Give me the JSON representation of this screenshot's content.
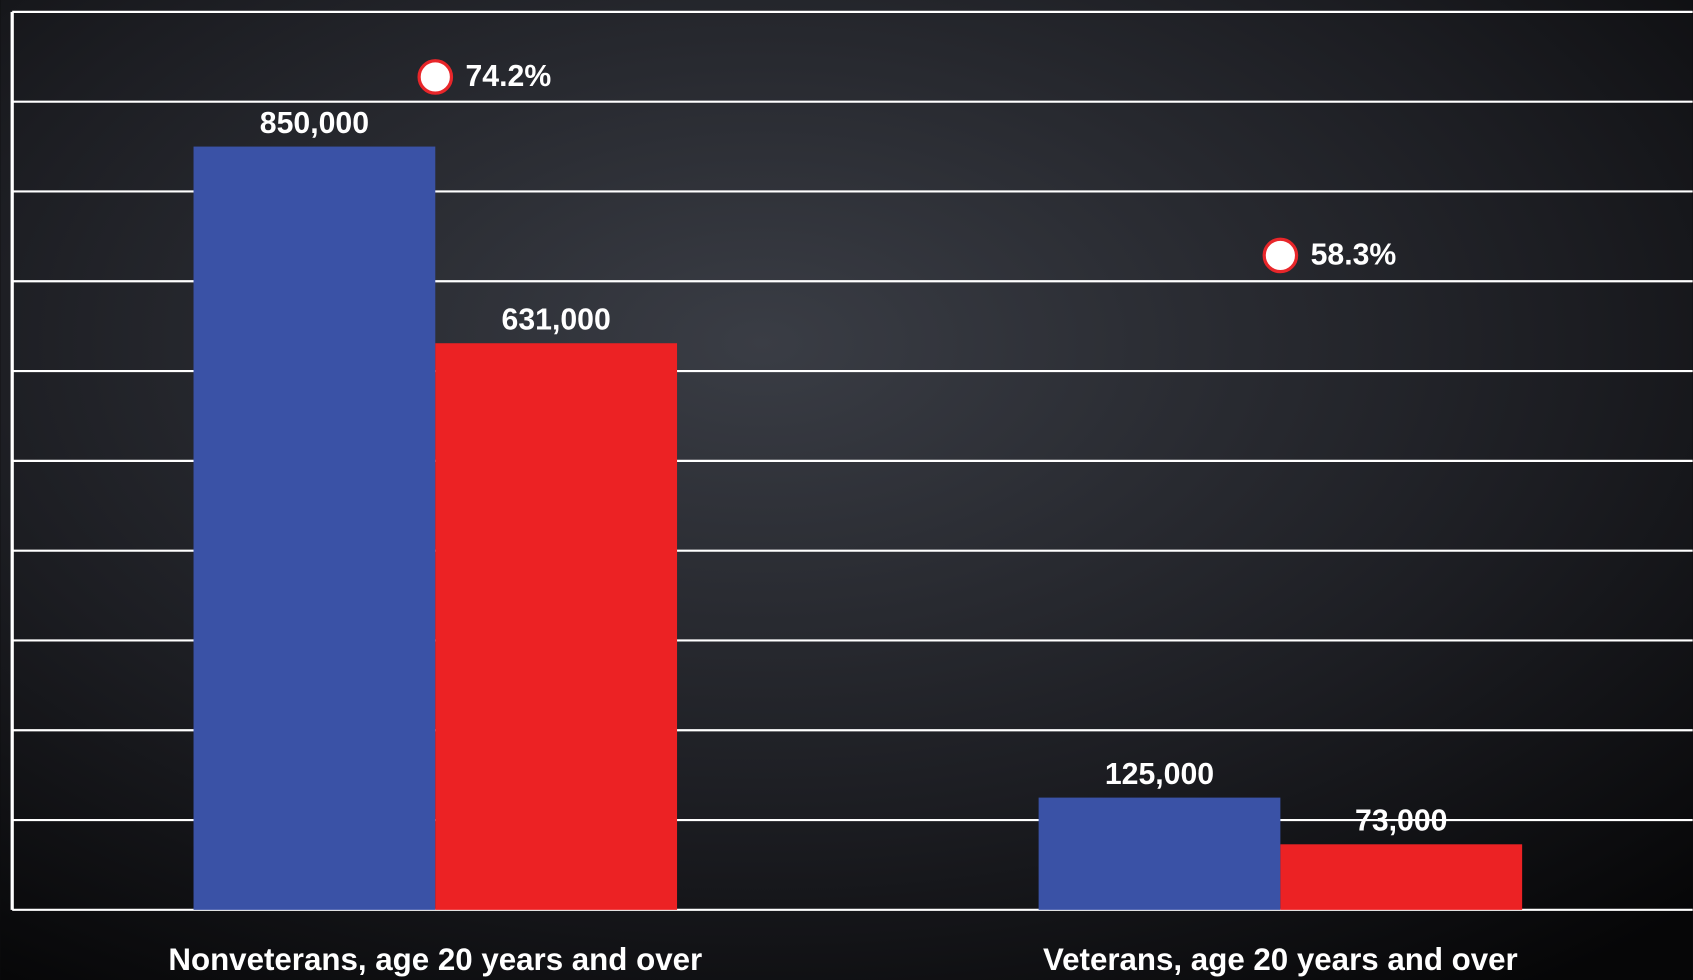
{
  "chart_data": {
    "type": "bar",
    "categories": [
      "Nonveterans, age 20 years and over",
      "Veterans, age 20 years and over"
    ],
    "series": [
      {
        "color": "#3a52a6",
        "values": [
          850000,
          125000
        ],
        "value_labels": [
          "850,000",
          "125,000"
        ]
      },
      {
        "color": "#ec2224",
        "values": [
          631000,
          73000
        ],
        "value_labels": [
          "631,000",
          "73,000"
        ]
      },
      {
        "type": "scatter",
        "axis": "y2",
        "color": "#ffffff",
        "values": [
          74.2,
          58.3
        ],
        "value_labels": [
          "74.2%",
          "58.3%"
        ]
      }
    ],
    "ylim": [
      0,
      1000000
    ],
    "yticks": [
      0,
      100000,
      200000,
      300000,
      400000,
      500000,
      600000,
      700000,
      800000,
      900000,
      1000000
    ],
    "y2lim": [
      0,
      80
    ],
    "grid": true
  }
}
